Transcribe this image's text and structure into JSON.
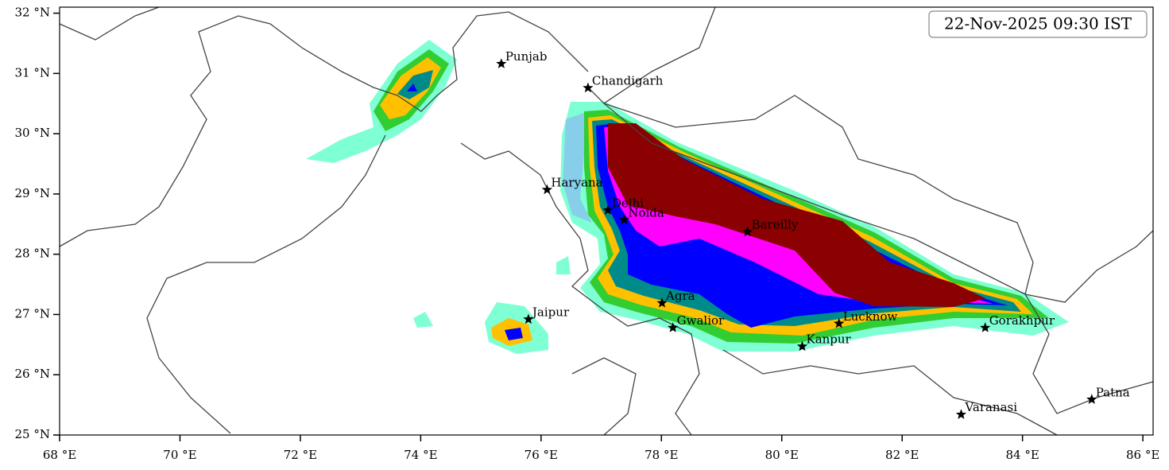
{
  "map": {
    "timestamp": "22-Nov-2025 09:30 IST",
    "xlim": [
      68,
      86.17
    ],
    "ylim": [
      25,
      32.1
    ],
    "xticks": [
      {
        "value": 68,
        "label": "68 °E"
      },
      {
        "value": 70,
        "label": "70 °E"
      },
      {
        "value": 72,
        "label": "72 °E"
      },
      {
        "value": 74,
        "label": "74 °E"
      },
      {
        "value": 76,
        "label": "76 °E"
      },
      {
        "value": 78,
        "label": "78 °E"
      },
      {
        "value": 80,
        "label": "80 °E"
      },
      {
        "value": 82,
        "label": "82 °E"
      },
      {
        "value": 84,
        "label": "84 °E"
      },
      {
        "value": 86,
        "label": "86 °E"
      }
    ],
    "yticks": [
      {
        "value": 25,
        "label": "25 °N"
      },
      {
        "value": 26,
        "label": "26 °N"
      },
      {
        "value": 27,
        "label": "27 °N"
      },
      {
        "value": 28,
        "label": "28 °N"
      },
      {
        "value": 29,
        "label": "29 °N"
      },
      {
        "value": 30,
        "label": "30 °N"
      },
      {
        "value": 31,
        "label": "31 °N"
      },
      {
        "value": 32,
        "label": "32 °N"
      }
    ],
    "cities": [
      {
        "name": "Punjab",
        "lon": 75.34,
        "lat": 31.16
      },
      {
        "name": "Chandigarh",
        "lon": 76.78,
        "lat": 30.76
      },
      {
        "name": "Haryana",
        "lon": 76.1,
        "lat": 29.07
      },
      {
        "name": "Delhi",
        "lon": 77.11,
        "lat": 28.73
      },
      {
        "name": "Noida",
        "lon": 77.38,
        "lat": 28.57
      },
      {
        "name": "Bareilly",
        "lon": 79.43,
        "lat": 28.37
      },
      {
        "name": "Agra",
        "lon": 78.01,
        "lat": 27.19
      },
      {
        "name": "Jaipur",
        "lon": 75.79,
        "lat": 26.92
      },
      {
        "name": "Gwalior",
        "lon": 78.19,
        "lat": 26.78
      },
      {
        "name": "Lucknow",
        "lon": 80.95,
        "lat": 26.85
      },
      {
        "name": "Kanpur",
        "lon": 80.34,
        "lat": 26.47
      },
      {
        "name": "Gorakhpur",
        "lon": 83.38,
        "lat": 26.78
      },
      {
        "name": "Varanasi",
        "lon": 82.98,
        "lat": 25.34
      },
      {
        "name": "Patna",
        "lon": 85.15,
        "lat": 25.59
      }
    ]
  }
}
